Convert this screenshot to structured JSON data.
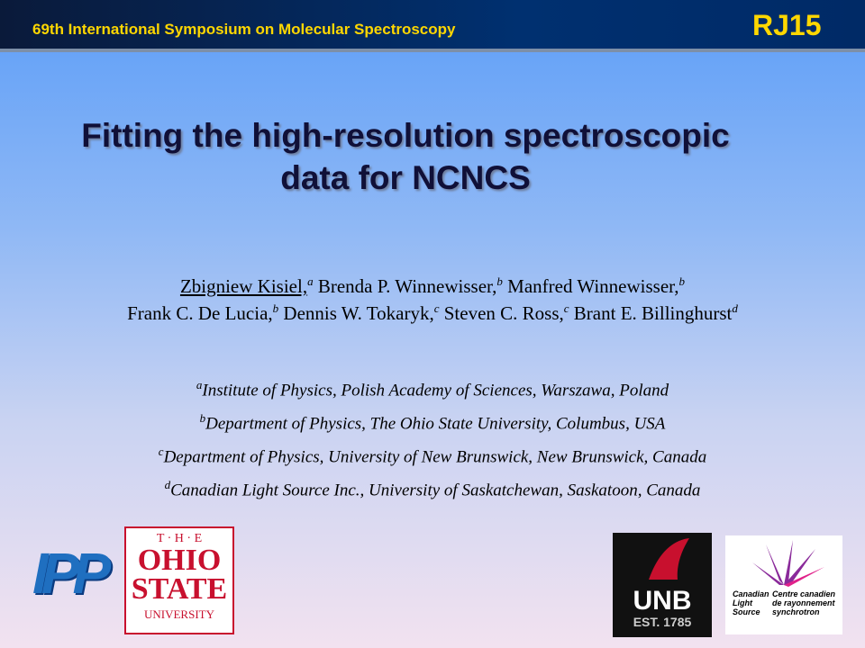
{
  "header": {
    "conference": "69th International Symposium on Molecular Spectroscopy",
    "code": "RJ15"
  },
  "title": [
    "Fitting the high-resolution spectroscopic",
    "data for NCNCS"
  ],
  "authors": [
    [
      {
        "name": "Zbigniew Kisiel,",
        "sup": "a"
      },
      {
        "name": "Brenda P. Winnewisser,",
        "sup": "b"
      },
      {
        "name": "Manfred Winnewisser,",
        "sup": "b"
      }
    ],
    [
      {
        "name": "Frank C. De Lucia,",
        "sup": "b"
      },
      {
        "name": "Dennis W. Tokaryk,",
        "sup": "c"
      },
      {
        "name": "Steven C. Ross,",
        "sup": "c"
      },
      {
        "name": "Brant E. Billinghurst",
        "sup": "d"
      }
    ]
  ],
  "affiliations": [
    {
      "sup": "a",
      "text": "Institute of Physics, Polish Academy of Sciences, Warszawa, Poland"
    },
    {
      "sup": "b",
      "text": "Department of Physics, The Ohio State University, Columbus, USA"
    },
    {
      "sup": "c",
      "text": "Department of Physics, University of New Brunswick, New Brunswick, Canada"
    },
    {
      "sup": "d",
      "text": "Canadian Light Source Inc., University of Saskatchewan,  Saskatoon, Canada"
    }
  ],
  "logos": {
    "ipp": "IPP",
    "osu": [
      "T · H · E",
      "OHIO",
      "STATE",
      "UNIVERSITY"
    ],
    "unb": [
      "UNB",
      "EST. 1785"
    ],
    "cls": [
      "Canadian Light Source",
      "Centre canadien de rayonnement synchrotron"
    ]
  }
}
